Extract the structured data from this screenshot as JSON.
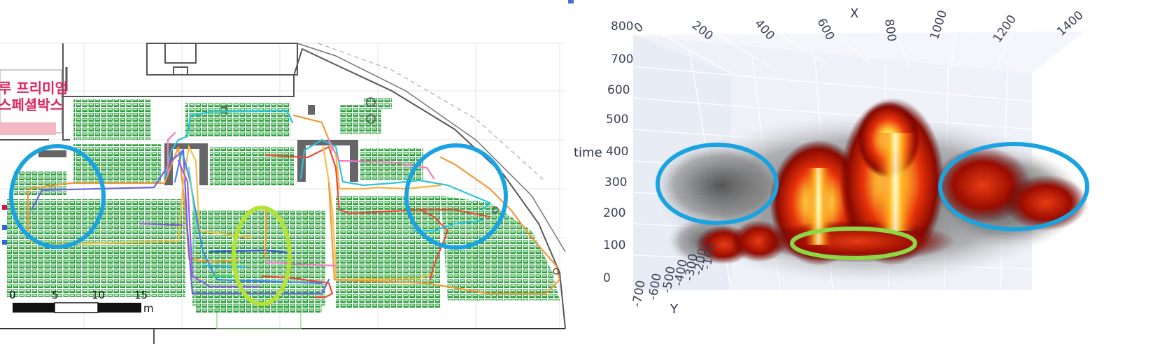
{
  "floor_plan": {
    "booth_label_lines": [
      "루 프리미엄",
      "스페셜박스"
    ],
    "scale_bar": {
      "ticks": [
        "0",
        "5",
        "10",
        "15"
      ],
      "unit": "m"
    },
    "colors": {
      "seat_fill": "#2e9e3e",
      "wall": "#555555",
      "booth_text": "#e0245e",
      "highlight_blue": "#1aa3e0",
      "highlight_green": "#9bd82c"
    }
  },
  "chart_3d": {
    "x_axis": {
      "title": "X",
      "ticks": [
        "0",
        "200",
        "400",
        "600",
        "800",
        "1000",
        "1200",
        "1400"
      ]
    },
    "time_axis": {
      "title": "time",
      "ticks": [
        "800",
        "700",
        "600",
        "500",
        "400",
        "300",
        "200",
        "100",
        "0"
      ]
    },
    "y_axis": {
      "title": "Y",
      "ticks": [
        "-700",
        "-600",
        "-500",
        "-400",
        "-300",
        "-200",
        "-100"
      ]
    },
    "colors": {
      "heat_core": "#ffffa0",
      "heat_mid": "#e8320a",
      "heat_outer": "#7a0000",
      "shadow": "#5a5a5a",
      "highlight_blue": "#1aa3e0",
      "highlight_green": "#8fd645"
    }
  }
}
